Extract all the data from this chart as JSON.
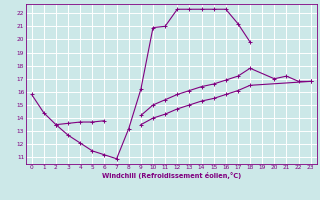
{
  "title": "",
  "xlabel": "Windchill (Refroidissement éolien,°C)",
  "bg_color": "#cce8e8",
  "grid_color": "#ffffff",
  "line_color": "#800080",
  "xlim": [
    -0.5,
    23.5
  ],
  "ylim": [
    10.5,
    22.7
  ],
  "xticks": [
    0,
    1,
    2,
    3,
    4,
    5,
    6,
    7,
    8,
    9,
    10,
    11,
    12,
    13,
    14,
    15,
    16,
    17,
    18,
    19,
    20,
    21,
    22,
    23
  ],
  "yticks": [
    11,
    12,
    13,
    14,
    15,
    16,
    17,
    18,
    19,
    20,
    21,
    22
  ],
  "line1_x": [
    0,
    1,
    2,
    3,
    4,
    5,
    6,
    7,
    8,
    9,
    10,
    11,
    12,
    13,
    14,
    15,
    16,
    17,
    18
  ],
  "line1_y": [
    15.8,
    14.4,
    13.5,
    12.7,
    12.1,
    11.5,
    11.2,
    10.9,
    13.2,
    16.2,
    20.9,
    21.0,
    22.3,
    22.3,
    22.3,
    22.3,
    22.3,
    21.2,
    19.8
  ],
  "line2_x": [
    2,
    3,
    4,
    5,
    6
  ],
  "line2_y": [
    13.5,
    13.6,
    13.7,
    13.7,
    13.8
  ],
  "line3_x": [
    9,
    10,
    11,
    12,
    13,
    14,
    15,
    16,
    17,
    18,
    20,
    21,
    22,
    23
  ],
  "line3_y": [
    14.2,
    15.0,
    15.4,
    15.8,
    16.1,
    16.4,
    16.6,
    16.9,
    17.2,
    17.8,
    17.0,
    17.2,
    16.8,
    16.8
  ],
  "line4_x": [
    9,
    10,
    11,
    12,
    13,
    14,
    15,
    16,
    17,
    18,
    23
  ],
  "line4_y": [
    13.5,
    14.0,
    14.3,
    14.7,
    15.0,
    15.3,
    15.5,
    15.8,
    16.1,
    16.5,
    16.8
  ]
}
